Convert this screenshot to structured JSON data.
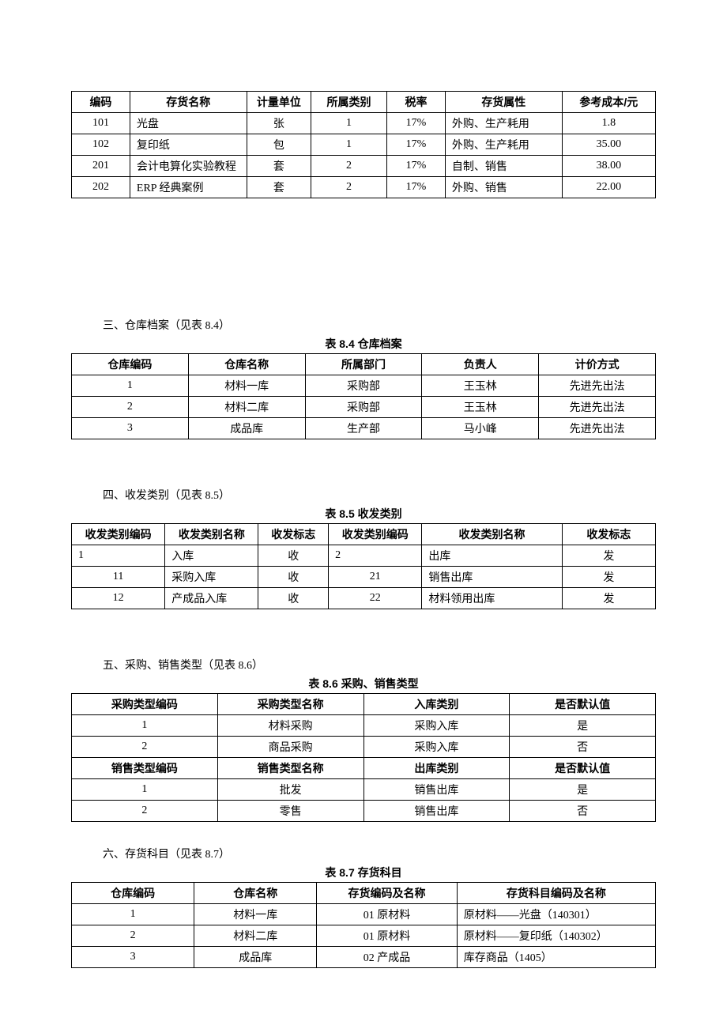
{
  "table1": {
    "headers": [
      "编码",
      "存货名称",
      "计量单位",
      "所属类别",
      "税率",
      "存货属性",
      "参考成本/元"
    ],
    "col_widths": [
      "10%",
      "20%",
      "11%",
      "13%",
      "10%",
      "20%",
      "16%"
    ],
    "rows": [
      [
        "101",
        "光盘",
        "张",
        "1",
        "17%",
        "外购、生产耗用",
        "1.8"
      ],
      [
        "102",
        "复印纸",
        "包",
        "1",
        "17%",
        "外购、生产耗用",
        "35.00"
      ],
      [
        "201",
        "会计电算化实验教程",
        "套",
        "2",
        "17%",
        "自制、销售",
        "38.00"
      ],
      [
        "202",
        "ERP 经典案例",
        "套",
        "2",
        "17%",
        "外购、销售",
        "22.00"
      ]
    ]
  },
  "section3": {
    "heading": "三、仓库档案（见表 8.4）",
    "caption": "表 8.4  仓库档案",
    "headers": [
      "仓库编码",
      "仓库名称",
      "所属部门",
      "负责人",
      "计价方式"
    ],
    "rows": [
      [
        "1",
        "材料一库",
        "采购部",
        "王玉林",
        "先进先出法"
      ],
      [
        "2",
        "材料二库",
        "采购部",
        "王玉林",
        "先进先出法"
      ],
      [
        "3",
        "成品库",
        "生产部",
        "马小峰",
        "先进先出法"
      ]
    ]
  },
  "section4": {
    "heading": "四、收发类别（见表 8.5）",
    "caption": "表  8.5  收发类别",
    "headers": [
      "收发类别编码",
      "收发类别名称",
      "收发标志",
      "收发类别编码",
      "收发类别名称",
      "收发标志"
    ],
    "col_widths": [
      "16%",
      "16%",
      "12%",
      "16%",
      "24%",
      "16%"
    ],
    "rows": [
      {
        "cells": [
          "1",
          "入库",
          "收",
          "2",
          "出库",
          "发"
        ],
        "align": [
          "left",
          "left",
          "center",
          "left",
          "left",
          "center"
        ]
      },
      {
        "cells": [
          "11",
          "采购入库",
          "收",
          "21",
          "销售出库",
          "发"
        ],
        "align": [
          "center",
          "left",
          "center",
          "center",
          "left",
          "center"
        ]
      },
      {
        "cells": [
          "12",
          "产成品入库",
          "收",
          "22",
          "材料领用出库",
          "发"
        ],
        "align": [
          "center",
          "left",
          "center",
          "center",
          "left",
          "center"
        ]
      }
    ]
  },
  "section5": {
    "heading": "五、采购、销售类型（见表 8.6）",
    "caption": "表 8.6  采购、销售类型",
    "headers1": [
      "采购类型编码",
      "采购类型名称",
      "入库类别",
      "是否默认值"
    ],
    "rows1": [
      [
        "1",
        "材料采购",
        "采购入库",
        "是"
      ],
      [
        "2",
        "商品采购",
        "采购入库",
        "否"
      ]
    ],
    "headers2": [
      "销售类型编码",
      "销售类型名称",
      "出库类别",
      "是否默认值"
    ],
    "rows2": [
      [
        "1",
        "批发",
        "销售出库",
        "是"
      ],
      [
        "2",
        "零售",
        "销售出库",
        "否"
      ]
    ]
  },
  "section6": {
    "heading": "六、存货科目（见表 8.7）",
    "caption": "表 8.7  存货科目",
    "headers": [
      "仓库编码",
      "仓库名称",
      "存货编码及名称",
      "存货科目编码及名称"
    ],
    "col_widths": [
      "21%",
      "21%",
      "24%",
      "34%"
    ],
    "rows": [
      [
        "1",
        "材料一库",
        "01  原材料",
        "原材料——光盘（140301）"
      ],
      [
        "2",
        "材料二库",
        "01  原材料",
        "原材料——复印纸（140302）"
      ],
      [
        "3",
        "成品库",
        "02  产成品",
        "库存商品（1405）"
      ]
    ]
  }
}
